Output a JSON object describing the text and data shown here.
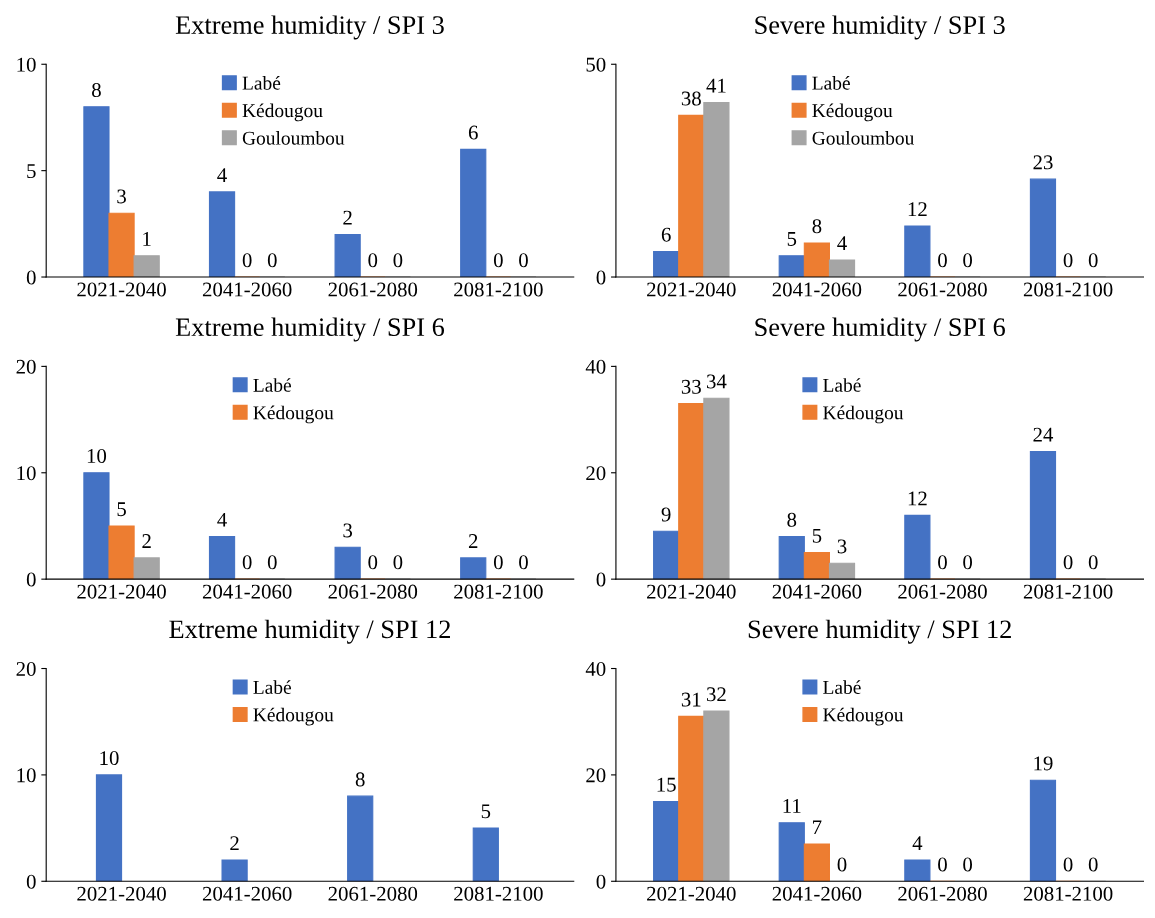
{
  "chart_data": [
    {
      "type": "bar",
      "title": "Extreme humidity / SPI 3",
      "categories": [
        "2021-2040",
        "2041-2060",
        "2061-2080",
        "2081-2100"
      ],
      "ylim": [
        0,
        10
      ],
      "yticks": [
        0,
        5,
        10
      ],
      "data_labels": true,
      "legend": "top center",
      "grid": false,
      "series": [
        {
          "name": "Labé",
          "color": "#4472c4",
          "values": [
            8,
            4,
            2,
            6
          ]
        },
        {
          "name": "Kédougou",
          "color": "#ed7d31",
          "values": [
            3,
            0,
            0,
            0
          ]
        },
        {
          "name": "Gouloumbou",
          "color": "#a5a5a5",
          "values": [
            1,
            0,
            0,
            0
          ]
        }
      ]
    },
    {
      "type": "bar",
      "title": "Severe humidity / SPI 3",
      "categories": [
        "2021-2040",
        "2041-2060",
        "2061-2080",
        "2081-2100"
      ],
      "ylim": [
        0,
        50
      ],
      "yticks": [
        0,
        50
      ],
      "data_labels": true,
      "legend": "top center",
      "grid": false,
      "series": [
        {
          "name": "Labé",
          "color": "#4472c4",
          "values": [
            6,
            5,
            12,
            23
          ]
        },
        {
          "name": "Kédougou",
          "color": "#ed7d31",
          "values": [
            38,
            8,
            0,
            0
          ]
        },
        {
          "name": "Gouloumbou",
          "color": "#a5a5a5",
          "values": [
            41,
            4,
            0,
            0
          ]
        }
      ]
    },
    {
      "type": "bar",
      "title": "Extreme humidity / SPI 6",
      "categories": [
        "2021-2040",
        "2041-2060",
        "2061-2080",
        "2081-2100"
      ],
      "ylim": [
        0,
        20
      ],
      "yticks": [
        0,
        10,
        20
      ],
      "data_labels": true,
      "legend": "top center",
      "grid": false,
      "series": [
        {
          "name": "Labé",
          "color": "#4472c4",
          "values": [
            10,
            4,
            3,
            2
          ]
        },
        {
          "name": "Kédougou",
          "color": "#ed7d31",
          "values": [
            5,
            0,
            0,
            0
          ]
        },
        {
          "color": "#a5a5a5",
          "values": [
            2,
            0,
            0,
            0
          ]
        }
      ]
    },
    {
      "type": "bar",
      "title": "Severe humidity / SPI 6",
      "categories": [
        "2021-2040",
        "2041-2060",
        "2061-2080",
        "2081-2100"
      ],
      "ylim": [
        0,
        40
      ],
      "yticks": [
        0,
        20,
        40
      ],
      "data_labels": true,
      "legend": "top center",
      "grid": false,
      "series": [
        {
          "name": "Labé",
          "color": "#4472c4",
          "values": [
            9,
            8,
            12,
            24
          ]
        },
        {
          "name": "Kédougou",
          "color": "#ed7d31",
          "values": [
            33,
            5,
            0,
            0
          ]
        },
        {
          "color": "#a5a5a5",
          "values": [
            34,
            3,
            0,
            0
          ]
        }
      ]
    },
    {
      "type": "bar",
      "title": "Extreme humidity / SPI 12",
      "categories": [
        "2021-2040",
        "2041-2060",
        "2061-2080",
        "2081-2100"
      ],
      "ylim": [
        0,
        20
      ],
      "yticks": [
        0,
        10,
        20
      ],
      "data_labels": true,
      "legend": "top center",
      "grid": false,
      "series": [
        {
          "name": "Labé",
          "color": "#4472c4",
          "values": [
            10,
            2,
            8,
            5
          ]
        },
        {
          "name": "Kédougou",
          "color": "#ed7d31",
          "values": [
            null,
            null,
            null,
            null
          ]
        }
      ]
    },
    {
      "type": "bar",
      "title": "Severe humidity / SPI 12",
      "categories": [
        "2021-2040",
        "2041-2060",
        "2061-2080",
        "2081-2100"
      ],
      "ylim": [
        0,
        40
      ],
      "yticks": [
        0,
        20,
        40
      ],
      "data_labels": true,
      "legend": "top center",
      "grid": false,
      "series": [
        {
          "name": "Labé",
          "color": "#4472c4",
          "values": [
            15,
            11,
            4,
            19
          ]
        },
        {
          "name": "Kédougou",
          "color": "#ed7d31",
          "values": [
            31,
            7,
            0,
            0
          ]
        },
        {
          "color": "#a5a5a5",
          "values": [
            32,
            0,
            0,
            0
          ]
        }
      ]
    }
  ]
}
